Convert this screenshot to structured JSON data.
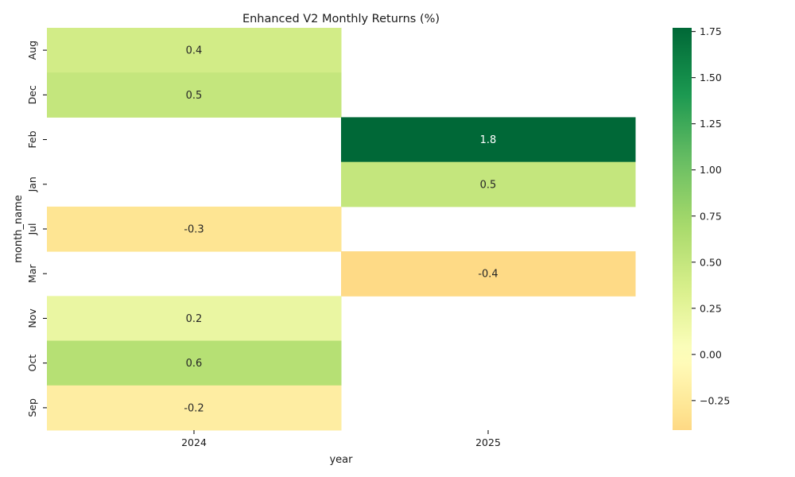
{
  "chart_data": {
    "type": "heatmap",
    "title": "Enhanced V2 Monthly Returns (%)",
    "xlabel": "year",
    "ylabel": "month_name",
    "x": [
      "2024",
      "2025"
    ],
    "y": [
      "Aug",
      "Dec",
      "Feb",
      "Jan",
      "Jul",
      "Mar",
      "Nov",
      "Oct",
      "Sep"
    ],
    "values": [
      [
        0.4,
        null
      ],
      [
        0.5,
        null
      ],
      [
        null,
        1.8
      ],
      [
        null,
        0.5
      ],
      [
        -0.3,
        null
      ],
      [
        null,
        -0.4
      ],
      [
        0.2,
        null
      ],
      [
        0.6,
        null
      ],
      [
        -0.2,
        null
      ]
    ],
    "annotations": [
      [
        "0.4",
        ""
      ],
      [
        "0.5",
        ""
      ],
      [
        "",
        "1.8"
      ],
      [
        "",
        "0.5"
      ],
      [
        "-0.3",
        ""
      ],
      [
        "",
        "-0.4"
      ],
      [
        "0.2",
        ""
      ],
      [
        "0.6",
        ""
      ],
      [
        "-0.2",
        ""
      ]
    ],
    "color_range": [
      -0.41,
      1.77
    ],
    "colormap": "RdYlGn",
    "colorbar_ticks": [
      1.75,
      1.5,
      1.25,
      1.0,
      0.75,
      0.5,
      0.25,
      0.0,
      -0.25
    ],
    "colorbar_tick_labels": [
      "1.75",
      "1.50",
      "1.25",
      "1.00",
      "0.75",
      "0.50",
      "0.25",
      "0.00",
      "−0.25"
    ],
    "grid": false
  }
}
